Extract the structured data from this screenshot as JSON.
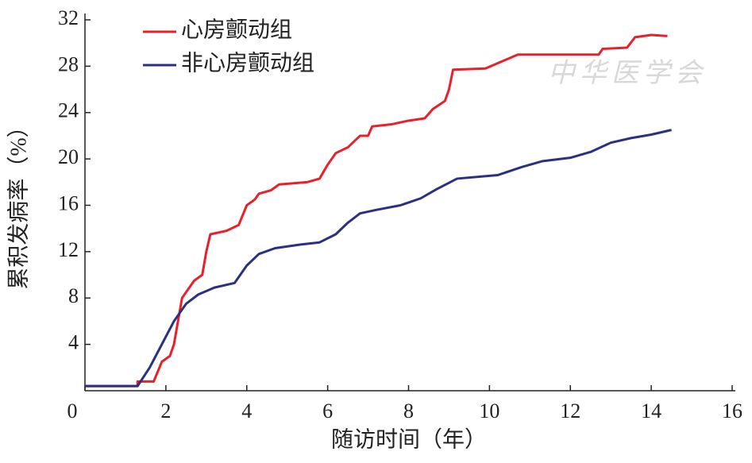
{
  "chart_data": {
    "type": "line",
    "xlabel": "随访时间（年）",
    "ylabel": "累积发病率（%）",
    "watermark": "中华医学会",
    "xlim": [
      0,
      16
    ],
    "xticks": [
      0,
      2,
      4,
      6,
      8,
      10,
      12,
      14,
      16
    ],
    "ylim": [
      0,
      32
    ],
    "yticks": [
      4,
      8,
      12,
      16,
      20,
      24,
      28,
      32
    ],
    "legend": "upper left",
    "series": [
      {
        "name": "心房颤动组",
        "color": "#e8202a",
        "x": [
          0,
          1.3,
          1.3,
          1.7,
          1.9,
          2.1,
          2.2,
          2.3,
          2.4,
          2.5,
          2.7,
          2.9,
          3.0,
          3.1,
          3.5,
          3.8,
          4.0,
          4.2,
          4.3,
          4.6,
          4.8,
          5.5,
          5.8,
          6.0,
          6.2,
          6.5,
          6.8,
          7.0,
          7.1,
          7.6,
          8.0,
          8.4,
          8.6,
          8.9,
          9.0,
          9.1,
          9.9,
          10.3,
          10.7,
          12.7,
          12.8,
          13.4,
          13.6,
          14.0,
          14.4
        ],
        "values": [
          0.4,
          0.4,
          0.8,
          0.8,
          2.5,
          3,
          4,
          6,
          8,
          8.5,
          9.5,
          10,
          12,
          13.5,
          13.8,
          14.3,
          16,
          16.5,
          17,
          17.3,
          17.8,
          18,
          18.3,
          19.5,
          20.5,
          21,
          22,
          22,
          22.8,
          23,
          23.3,
          23.5,
          24.3,
          25,
          26,
          27.7,
          27.8,
          28.4,
          29,
          29,
          29.5,
          29.6,
          30.5,
          30.7,
          30.6
        ]
      },
      {
        "name": "非心房颤动组",
        "color": "#2b3082",
        "x": [
          0,
          1.3,
          1.6,
          1.9,
          2.2,
          2.5,
          2.8,
          3.2,
          3.7,
          4.0,
          4.3,
          4.7,
          5.3,
          5.8,
          6.2,
          6.5,
          6.8,
          7.2,
          7.8,
          8.3,
          8.7,
          9.2,
          10.2,
          10.8,
          11.3,
          12.0,
          12.5,
          13.0,
          13.5,
          14.0,
          14.5
        ],
        "values": [
          0.4,
          0.4,
          2,
          4,
          6,
          7.5,
          8.3,
          8.9,
          9.3,
          10.8,
          11.8,
          12.3,
          12.6,
          12.8,
          13.5,
          14.5,
          15.3,
          15.6,
          16,
          16.6,
          17.4,
          18.3,
          18.6,
          19.3,
          19.8,
          20.1,
          20.6,
          21.4,
          21.8,
          22.1,
          22.5
        ]
      }
    ]
  }
}
